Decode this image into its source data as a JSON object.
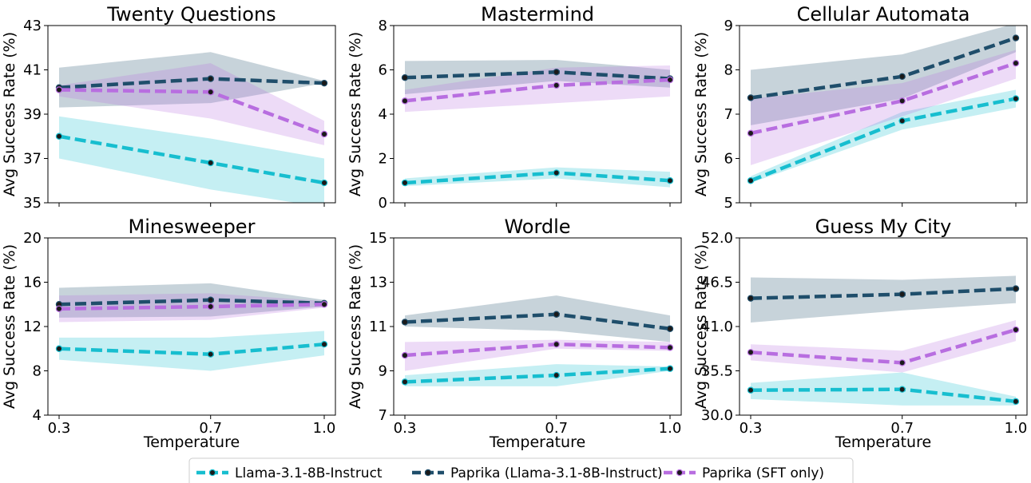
{
  "chart_data": {
    "type": "line",
    "x": [
      0.3,
      0.7,
      1.0
    ],
    "xticks": [
      "0.3",
      "0.7",
      "1.0"
    ],
    "xlabel": "Temperature",
    "ylabel": "Avg Success Rate (%)",
    "colors": {
      "llama": "#17becf",
      "paprika": "#1f4e6b",
      "sft": "#b86ee0"
    },
    "legend": {
      "position": "bottom-center",
      "entries": [
        {
          "key": "llama",
          "label": "Llama-3.1-8B-Instruct"
        },
        {
          "key": "paprika",
          "label": "Paprika (Llama-3.1-8B-Instruct)"
        },
        {
          "key": "sft",
          "label": "Paprika (SFT only)"
        }
      ]
    },
    "panels": [
      {
        "title": "Twenty Questions",
        "ylim": [
          35,
          43
        ],
        "yticks": [
          "35",
          "37",
          "39",
          "41",
          "43"
        ],
        "series": [
          {
            "key": "llama",
            "name": "Llama-3.1-8B-Instruct",
            "values": [
              38.0,
              36.8,
              35.9
            ],
            "lower": [
              37.0,
              35.6,
              34.8
            ],
            "upper": [
              38.9,
              37.9,
              37.0
            ]
          },
          {
            "key": "paprika",
            "name": "Paprika (Llama-3.1-8B-Instruct)",
            "values": [
              40.2,
              40.6,
              40.4
            ],
            "lower": [
              39.3,
              39.5,
              40.4
            ],
            "upper": [
              41.1,
              41.8,
              40.5
            ]
          },
          {
            "key": "sft",
            "name": "Paprika (SFT only)",
            "values": [
              40.1,
              40.0,
              38.1
            ],
            "lower": [
              39.8,
              38.8,
              37.6
            ],
            "upper": [
              40.3,
              41.3,
              38.7
            ]
          }
        ]
      },
      {
        "title": "Mastermind",
        "ylim": [
          0,
          8
        ],
        "yticks": [
          "0",
          "2",
          "4",
          "6",
          "8"
        ],
        "series": [
          {
            "key": "llama",
            "name": "Llama-3.1-8B-Instruct",
            "values": [
              0.9,
              1.35,
              1.0
            ],
            "lower": [
              0.75,
              1.1,
              0.7
            ],
            "upper": [
              1.1,
              1.6,
              1.4
            ]
          },
          {
            "key": "paprika",
            "name": "Paprika (Llama-3.1-8B-Instruct)",
            "values": [
              5.65,
              5.9,
              5.6
            ],
            "lower": [
              4.9,
              5.5,
              5.2
            ],
            "upper": [
              6.4,
              6.45,
              6.0
            ]
          },
          {
            "key": "sft",
            "name": "Paprika (SFT only)",
            "values": [
              4.6,
              5.3,
              5.55
            ],
            "lower": [
              4.1,
              4.5,
              4.8
            ],
            "upper": [
              5.1,
              6.1,
              6.2
            ]
          }
        ]
      },
      {
        "title": "Cellular Automata",
        "ylim": [
          5,
          9
        ],
        "yticks": [
          "5",
          "6",
          "7",
          "8",
          "9"
        ],
        "series": [
          {
            "key": "llama",
            "name": "Llama-3.1-8B-Instruct",
            "values": [
              5.5,
              6.85,
              7.35
            ],
            "lower": [
              5.45,
              6.65,
              7.15
            ],
            "upper": [
              5.6,
              7.05,
              7.55
            ]
          },
          {
            "key": "paprika",
            "name": "Paprika (Llama-3.1-8B-Instruct)",
            "values": [
              7.37,
              7.85,
              8.72
            ],
            "lower": [
              6.75,
              7.35,
              8.4
            ],
            "upper": [
              8.0,
              8.35,
              9.05
            ]
          },
          {
            "key": "sft",
            "name": "Paprika (SFT only)",
            "values": [
              6.57,
              7.3,
              8.15
            ],
            "lower": [
              5.85,
              6.95,
              7.8
            ],
            "upper": [
              7.35,
              7.7,
              8.45
            ]
          }
        ]
      },
      {
        "title": "Minesweeper",
        "ylim": [
          4,
          20
        ],
        "yticks": [
          "4",
          "8",
          "12",
          "16",
          "20"
        ],
        "series": [
          {
            "key": "llama",
            "name": "Llama-3.1-8B-Instruct",
            "values": [
              10.0,
              9.5,
              10.4
            ],
            "lower": [
              9.0,
              8.0,
              9.4
            ],
            "upper": [
              11.0,
              11.0,
              11.6
            ]
          },
          {
            "key": "paprika",
            "name": "Paprika (Llama-3.1-8B-Instruct)",
            "values": [
              14.0,
              14.4,
              14.1
            ],
            "lower": [
              12.8,
              12.9,
              13.8
            ],
            "upper": [
              15.5,
              15.9,
              14.4
            ]
          },
          {
            "key": "sft",
            "name": "Paprika (SFT only)",
            "values": [
              13.6,
              13.8,
              14.0
            ],
            "lower": [
              12.4,
              12.6,
              13.7
            ],
            "upper": [
              14.8,
              15.0,
              14.3
            ]
          }
        ]
      },
      {
        "title": "Wordle",
        "ylim": [
          7,
          15
        ],
        "yticks": [
          "7",
          "9",
          "11",
          "13",
          "15"
        ],
        "series": [
          {
            "key": "llama",
            "name": "Llama-3.1-8B-Instruct",
            "values": [
              8.5,
              8.8,
              9.1
            ],
            "lower": [
              8.3,
              8.3,
              9.0
            ],
            "upper": [
              8.8,
              9.3,
              9.2
            ]
          },
          {
            "key": "paprika",
            "name": "Paprika (Llama-3.1-8B-Instruct)",
            "values": [
              11.2,
              11.55,
              10.9
            ],
            "lower": [
              11.0,
              10.8,
              10.3
            ],
            "upper": [
              11.5,
              12.4,
              11.5
            ]
          },
          {
            "key": "sft",
            "name": "Paprika (SFT only)",
            "values": [
              9.7,
              10.2,
              10.05
            ],
            "lower": [
              9.0,
              10.0,
              9.9
            ],
            "upper": [
              10.3,
              10.4,
              10.3
            ]
          }
        ]
      },
      {
        "title": "Guess My City",
        "ylim": [
          30,
          52
        ],
        "yticks": [
          "30.0",
          "35.5",
          "41.0",
          "46.5",
          "52.0"
        ],
        "series": [
          {
            "key": "llama",
            "name": "Llama-3.1-8B-Instruct",
            "values": [
              33.1,
              33.2,
              31.7
            ],
            "lower": [
              32.0,
              31.2,
              31.2
            ],
            "upper": [
              34.0,
              35.3,
              32.3
            ]
          },
          {
            "key": "paprika",
            "name": "Paprika (Llama-3.1-8B-Instruct)",
            "values": [
              44.5,
              45.0,
              45.7
            ],
            "lower": [
              41.5,
              43.0,
              43.9
            ],
            "upper": [
              47.1,
              46.8,
              47.3
            ]
          },
          {
            "key": "sft",
            "name": "Paprika (SFT only)",
            "values": [
              37.8,
              36.5,
              40.6
            ],
            "lower": [
              36.8,
              35.3,
              39.2
            ],
            "upper": [
              38.8,
              38.0,
              41.8
            ]
          }
        ]
      }
    ]
  }
}
